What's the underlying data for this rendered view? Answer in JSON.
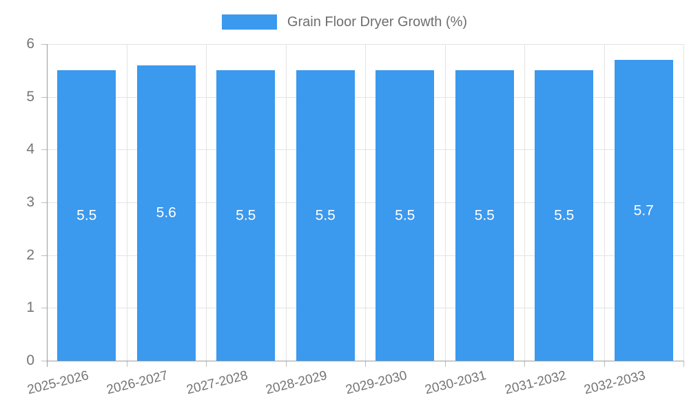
{
  "chart_data": {
    "type": "bar",
    "title": "Grain Floor Dryer Growth (%)",
    "legend": {
      "position": "top",
      "label": "Grain Floor Dryer Growth (%)"
    },
    "categories": [
      "2025-2026",
      "2026-2027",
      "2027-2028",
      "2028-2029",
      "2029-2030",
      "2030-2031",
      "2031-2032",
      "2032-2033"
    ],
    "values": [
      5.5,
      5.6,
      5.5,
      5.5,
      5.5,
      5.5,
      5.5,
      5.7
    ],
    "bar_labels": [
      "5.5",
      "5.6",
      "5.5",
      "5.5",
      "5.5",
      "5.5",
      "5.5",
      "5.7"
    ],
    "xlabel": "",
    "ylabel": "",
    "ylim": [
      0,
      6
    ],
    "y_ticks": [
      "0",
      "1",
      "2",
      "3",
      "4",
      "5",
      "6"
    ],
    "grid": "on",
    "colors": {
      "bar": "#3B99EE",
      "bar_label_text": "#FFFFFF",
      "axis_text": "#757575",
      "legend_text": "#6E6E6E",
      "gridline": "#E3E3E3",
      "axis_line": "#9B9B9B",
      "tick_mark": "#BDBDBD",
      "background": "#FFFFFF"
    }
  }
}
